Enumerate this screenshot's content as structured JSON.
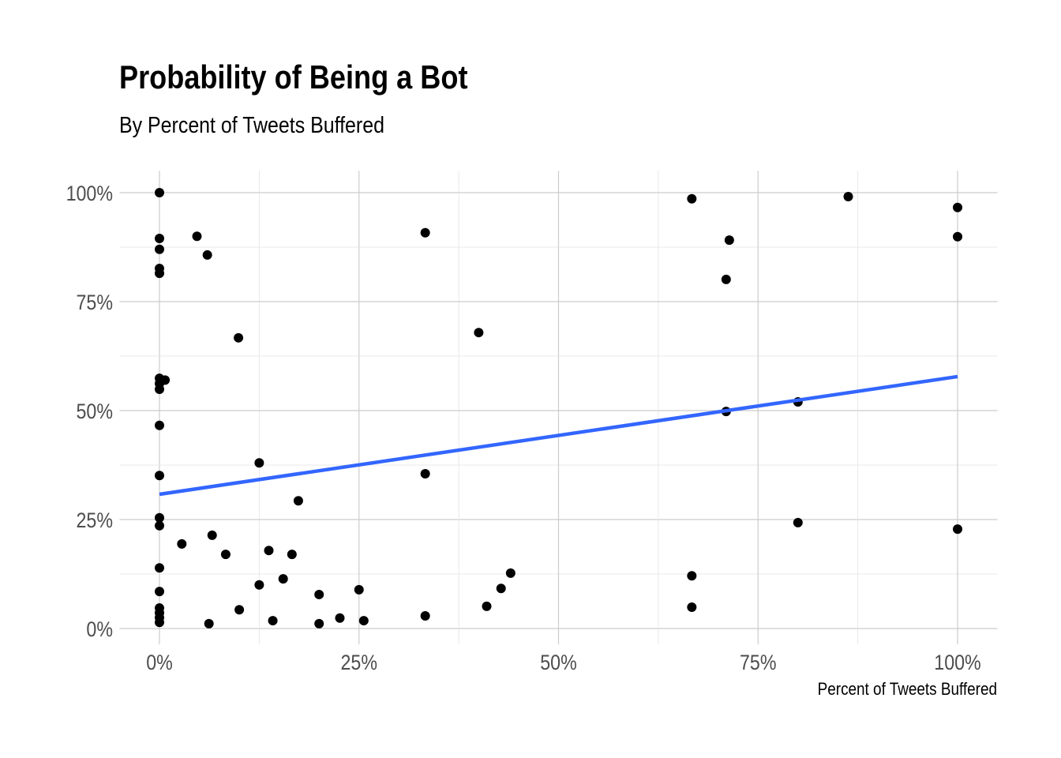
{
  "chart_data": {
    "type": "scatter",
    "title": "Probability of Being a Bot",
    "subtitle": "By Percent of Tweets Buffered",
    "xlabel": "Percent of Tweets Buffered",
    "ylabel": "",
    "xlim": [
      -5,
      105
    ],
    "ylim": [
      -5,
      105
    ],
    "x_ticks": [
      0,
      25,
      50,
      75,
      100
    ],
    "x_tick_labels": [
      "0%",
      "25%",
      "50%",
      "75%",
      "100%"
    ],
    "y_ticks": [
      0,
      25,
      50,
      75,
      100
    ],
    "y_tick_labels": [
      "0%",
      "25%",
      "50%",
      "75%",
      "100%"
    ],
    "grid": true,
    "point_color": "#000000",
    "trend_color": "#3366FF",
    "trend_line": {
      "x": [
        0,
        100
      ],
      "y": [
        30.8,
        57.8
      ]
    },
    "points": [
      [
        0,
        100
      ],
      [
        0,
        89.5
      ],
      [
        0,
        87
      ],
      [
        0,
        82.6
      ],
      [
        0,
        81.5
      ],
      [
        4.7,
        90
      ],
      [
        6,
        85.7
      ],
      [
        9.9,
        66.7
      ],
      [
        0,
        57.4
      ],
      [
        0,
        56.2
      ],
      [
        0.7,
        57
      ],
      [
        0,
        54.9
      ],
      [
        0,
        46.6
      ],
      [
        0,
        35.1
      ],
      [
        12.5,
        38
      ],
      [
        17.4,
        29.3
      ],
      [
        0,
        25.4
      ],
      [
        0,
        23.6
      ],
      [
        2.8,
        19.4
      ],
      [
        6.6,
        21.4
      ],
      [
        8.3,
        17
      ],
      [
        13.7,
        17.9
      ],
      [
        16.6,
        17
      ],
      [
        0,
        13.9
      ],
      [
        12.5,
        10
      ],
      [
        15.5,
        11.4
      ],
      [
        0,
        8.5
      ],
      [
        0,
        4.7
      ],
      [
        0,
        3.6
      ],
      [
        0,
        2.5
      ],
      [
        0,
        1.4
      ],
      [
        10,
        4.3
      ],
      [
        6.2,
        1.1
      ],
      [
        14.2,
        1.8
      ],
      [
        20,
        7.8
      ],
      [
        20,
        1.1
      ],
      [
        22.6,
        2.4
      ],
      [
        25,
        8.9
      ],
      [
        25.6,
        1.8
      ],
      [
        33.3,
        90.8
      ],
      [
        40,
        67.9
      ],
      [
        33.3,
        35.5
      ],
      [
        33.3,
        2.9
      ],
      [
        41,
        5.1
      ],
      [
        42.8,
        9.2
      ],
      [
        44,
        12.7
      ],
      [
        66.7,
        98.6
      ],
      [
        66.7,
        12.1
      ],
      [
        66.7,
        4.9
      ],
      [
        71,
        80.1
      ],
      [
        71.4,
        89.1
      ],
      [
        71,
        49.8
      ],
      [
        80,
        52
      ],
      [
        80,
        24.3
      ],
      [
        86.3,
        99.1
      ],
      [
        100,
        96.6
      ],
      [
        100,
        89.9
      ],
      [
        100,
        22.8
      ]
    ]
  }
}
